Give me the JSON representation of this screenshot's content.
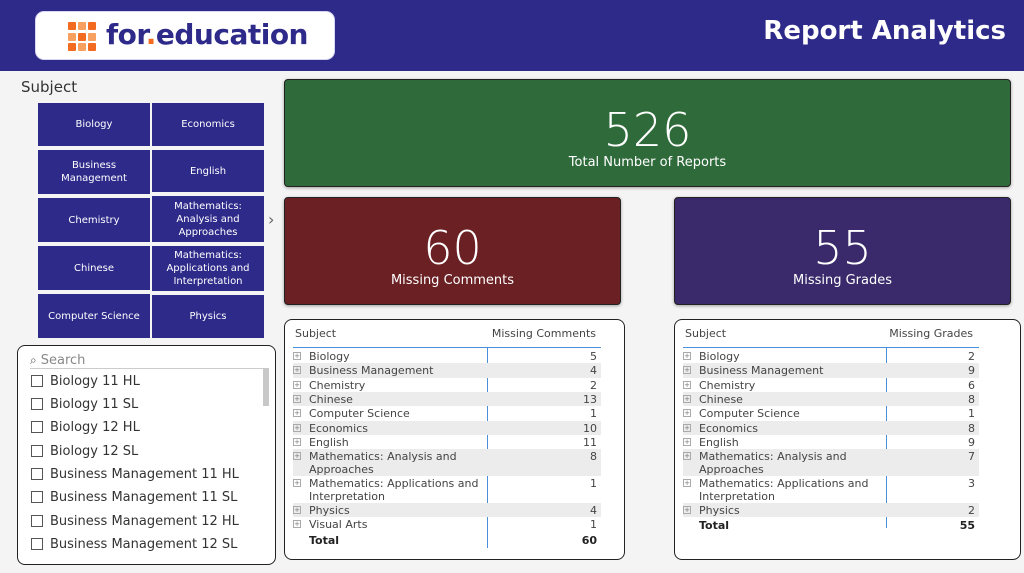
{
  "header": {
    "logo_text_1": "for",
    "logo_text_dot": ".",
    "logo_text_2": "education",
    "title": "Report Analytics",
    "brand_color": "#2e2a8a",
    "logo_accent": "#f26b21"
  },
  "subject_slicer": {
    "label": "Subject",
    "tiles": [
      "Biology",
      "Economics",
      "Business Management",
      "English",
      "Chemistry",
      "Mathematics: Analysis and Approaches",
      "Chinese",
      "Mathematics: Applications and Interpretation",
      "Computer Science",
      "Physics"
    ],
    "next_icon": "chevron-right-icon"
  },
  "class_slicer": {
    "search_placeholder": "Search",
    "items": [
      "Biology 11 HL",
      "Biology 11 SL",
      "Biology 12 HL",
      "Biology 12 SL",
      "Business Management 11 HL",
      "Business Management 11 SL",
      "Business Management 12 HL",
      "Business Management 12 SL"
    ]
  },
  "cards": {
    "total": {
      "value": "526",
      "label": "Total Number of Reports",
      "color": "#2f6b3a"
    },
    "comments": {
      "value": "60",
      "label": "Missing Comments",
      "color": "#6b2024"
    },
    "grades": {
      "value": "55",
      "label": "Missing Grades",
      "color": "#3a2a6b"
    }
  },
  "comments_table": {
    "col_subject": "Subject",
    "col_value": "Missing Comments",
    "rows": [
      {
        "name": "Biology",
        "value": "5"
      },
      {
        "name": "Business Management",
        "value": "4"
      },
      {
        "name": "Chemistry",
        "value": "2"
      },
      {
        "name": "Chinese",
        "value": "13"
      },
      {
        "name": "Computer Science",
        "value": "1"
      },
      {
        "name": "Economics",
        "value": "10"
      },
      {
        "name": "English",
        "value": "11"
      },
      {
        "name": "Mathematics: Analysis and Approaches",
        "value": "8"
      },
      {
        "name": "Mathematics: Applications and Interpretation",
        "value": "1"
      },
      {
        "name": "Physics",
        "value": "4"
      },
      {
        "name": "Visual Arts",
        "value": "1"
      }
    ],
    "total_label": "Total",
    "total_value": "60"
  },
  "grades_table": {
    "col_subject": "Subject",
    "col_value": "Missing Grades",
    "rows": [
      {
        "name": "Biology",
        "value": "2"
      },
      {
        "name": "Business Management",
        "value": "9"
      },
      {
        "name": "Chemistry",
        "value": "6"
      },
      {
        "name": "Chinese",
        "value": "8"
      },
      {
        "name": "Computer Science",
        "value": "1"
      },
      {
        "name": "Economics",
        "value": "8"
      },
      {
        "name": "English",
        "value": "9"
      },
      {
        "name": "Mathematics: Analysis and Approaches",
        "value": "7"
      },
      {
        "name": "Mathematics: Applications and Interpretation",
        "value": "3"
      },
      {
        "name": "Physics",
        "value": "2"
      }
    ],
    "total_label": "Total",
    "total_value": "55"
  }
}
